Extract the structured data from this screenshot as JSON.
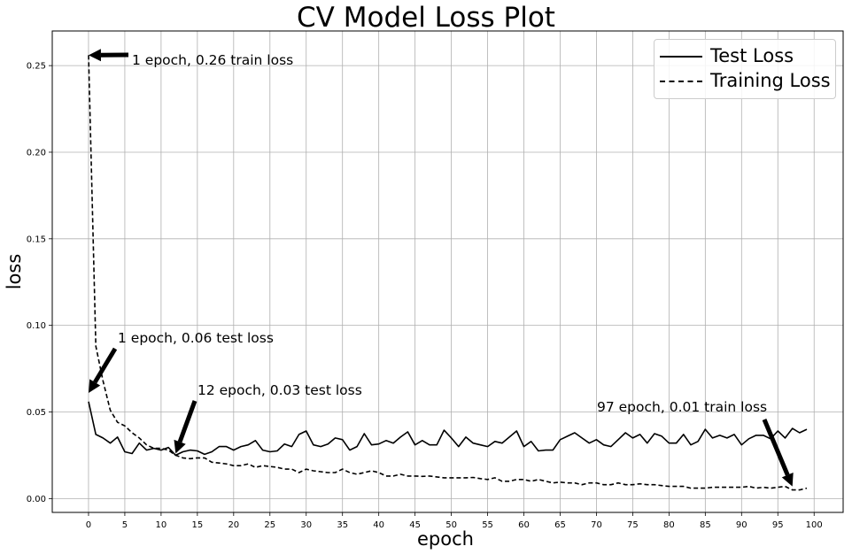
{
  "chart_data": {
    "type": "line",
    "title": "CV Model Loss Plot",
    "xlabel": "epoch",
    "ylabel": "loss",
    "xlim": [
      -5,
      104
    ],
    "ylim": [
      -0.008,
      0.27
    ],
    "grid": true,
    "legend_position": "top-right",
    "xticks": [
      0,
      5,
      10,
      15,
      20,
      25,
      30,
      35,
      40,
      45,
      50,
      55,
      60,
      65,
      70,
      75,
      80,
      85,
      90,
      95,
      100
    ],
    "xtick_labels": [
      "0",
      "5",
      "10",
      "15",
      "20",
      "25",
      "30",
      "35",
      "40",
      "45",
      "50",
      "55",
      "60",
      "65",
      "70",
      "75",
      "80",
      "85",
      "90",
      "95",
      "100"
    ],
    "yticks": [
      0.0,
      0.05,
      0.1,
      0.15,
      0.2,
      0.25
    ],
    "ytick_labels": [
      "0.00",
      "0.05",
      "0.10",
      "0.15",
      "0.20",
      "0.25"
    ],
    "series": [
      {
        "name": "Test Loss",
        "style": "solid",
        "color": "#000000",
        "values": [
          0.056,
          0.037,
          0.035,
          0.032,
          0.0355,
          0.027,
          0.026,
          0.032,
          0.028,
          0.029,
          0.028,
          0.0295,
          0.025,
          0.027,
          0.028,
          0.0275,
          0.0255,
          0.027,
          0.03,
          0.03,
          0.028,
          0.03,
          0.031,
          0.0335,
          0.028,
          0.027,
          0.0275,
          0.0315,
          0.03,
          0.037,
          0.039,
          0.031,
          0.03,
          0.0315,
          0.035,
          0.034,
          0.028,
          0.03,
          0.0375,
          0.031,
          0.0315,
          0.0335,
          0.032,
          0.0355,
          0.0385,
          0.031,
          0.0335,
          0.031,
          0.031,
          0.0395,
          0.035,
          0.03,
          0.0355,
          0.032,
          0.031,
          0.03,
          0.033,
          0.032,
          0.0355,
          0.039,
          0.03,
          0.033,
          0.0275,
          0.028,
          0.028,
          0.034,
          0.036,
          0.038,
          0.035,
          0.032,
          0.034,
          0.031,
          0.03,
          0.034,
          0.038,
          0.035,
          0.037,
          0.032,
          0.0375,
          0.036,
          0.032,
          0.032,
          0.037,
          0.031,
          0.033,
          0.04,
          0.035,
          0.0365,
          0.035,
          0.037,
          0.031,
          0.0345,
          0.0365,
          0.0365,
          0.0345,
          0.039,
          0.035,
          0.0405,
          0.038,
          0.04
        ]
      },
      {
        "name": "Training Loss",
        "style": "dashed",
        "color": "#000000",
        "values": [
          0.256,
          0.088,
          0.068,
          0.051,
          0.044,
          0.042,
          0.038,
          0.035,
          0.031,
          0.029,
          0.029,
          0.028,
          0.025,
          0.0235,
          0.023,
          0.0235,
          0.0235,
          0.021,
          0.0205,
          0.02,
          0.019,
          0.019,
          0.02,
          0.018,
          0.019,
          0.0185,
          0.018,
          0.017,
          0.017,
          0.015,
          0.017,
          0.016,
          0.0155,
          0.015,
          0.015,
          0.017,
          0.015,
          0.014,
          0.015,
          0.016,
          0.015,
          0.013,
          0.013,
          0.014,
          0.013,
          0.013,
          0.0128,
          0.013,
          0.0125,
          0.012,
          0.012,
          0.012,
          0.012,
          0.0122,
          0.0115,
          0.011,
          0.012,
          0.01,
          0.01,
          0.011,
          0.011,
          0.01,
          0.011,
          0.01,
          0.009,
          0.0095,
          0.009,
          0.009,
          0.008,
          0.009,
          0.009,
          0.008,
          0.008,
          0.009,
          0.008,
          0.008,
          0.0085,
          0.008,
          0.008,
          0.0075,
          0.007,
          0.007,
          0.007,
          0.006,
          0.006,
          0.006,
          0.0065,
          0.0065,
          0.0065,
          0.0065,
          0.0065,
          0.007,
          0.006,
          0.0065,
          0.006,
          0.0065,
          0.007,
          0.005,
          0.005,
          0.006
        ]
      }
    ],
    "annotations": [
      {
        "text": "1 epoch, 0.26 train loss",
        "text_x": 6,
        "text_y": 0.25,
        "point_x": 0,
        "point_y": 0.256
      },
      {
        "text": "1 epoch, 0.06 test loss",
        "text_x": 4,
        "text_y": 0.09,
        "point_x": 0,
        "point_y": 0.061
      },
      {
        "text": "12 epoch, 0.03 test loss",
        "text_x": 15,
        "text_y": 0.06,
        "point_x": 12,
        "point_y": 0.026
      },
      {
        "text": "97 epoch, 0.01 train loss",
        "text_x": 70,
        "text_y": 0.05,
        "point_x": 97,
        "point_y": 0.007
      }
    ]
  }
}
